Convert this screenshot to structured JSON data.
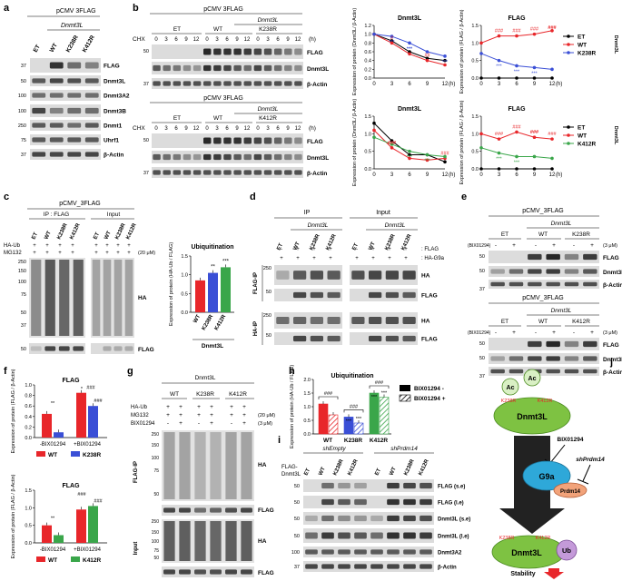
{
  "panels": {
    "a": {
      "letter": "a",
      "vector": "pCMV 3FLAG",
      "group": "Dnmt3L",
      "lanes": [
        "ET",
        "WT",
        "K238R",
        "K412R"
      ],
      "bands": [
        "FLAG",
        "Dnmt3L",
        "Dnmt3A2",
        "Dnmt3B",
        "Dnmt1",
        "Uhrf1",
        "β-Actin"
      ],
      "markers": [
        "37",
        "50",
        "100",
        "100",
        "250",
        "75",
        "37"
      ]
    },
    "b": {
      "letter": "b",
      "vector": "pCMV 3FLAG",
      "group": "Dnmt3L",
      "cond_top": [
        "ET",
        "WT",
        "K238R"
      ],
      "cond_bottom": [
        "ET",
        "WT",
        "K412R"
      ],
      "chx": "CHX",
      "times": [
        "0",
        "3",
        "6",
        "9",
        "12"
      ],
      "unit_h": "(h)",
      "bands": [
        "FLAG",
        "Dnmt3L",
        "β-Actin"
      ],
      "markers": [
        "50",
        "37"
      ]
    },
    "c": {
      "letter": "c",
      "vector": "pCMV_3FLAG",
      "ip_title": "IP : FLAG",
      "input_title": "Input",
      "lanes": [
        "ET",
        "WT",
        "K238R",
        "K412R"
      ],
      "treat": [
        "HA-Ub",
        "MG132"
      ],
      "dose": "(20 μM)",
      "bands": [
        "HA",
        "FLAG"
      ],
      "markers": [
        "250",
        "150",
        "100",
        "75",
        "50",
        "37",
        "50"
      ]
    },
    "d": {
      "letter": "d",
      "ip_title": "IP",
      "input_title": "Input",
      "group": "Dnmt3L",
      "lanes": [
        "ET",
        "WT",
        "K238R",
        "K412R"
      ],
      "rows": [
        ": FLAG",
        ": HA-G9a"
      ],
      "sections": [
        "FLAG-IP",
        "HA-IP"
      ],
      "bands": [
        "HA",
        "FLAG",
        "HA",
        "FLAG"
      ],
      "markers": [
        "250",
        "50",
        "250",
        "50"
      ]
    },
    "e": {
      "letter": "e",
      "vector": "pCMV_3FLAG",
      "group": "Dnmt3L",
      "treat": "BIX01294",
      "dose": "(3 μM)",
      "cond_top": [
        "ET",
        "WT",
        "K238R"
      ],
      "cond_bottom": [
        "ET",
        "WT",
        "K412R"
      ],
      "bands": [
        "FLAG",
        "Dnmt3L",
        "β-Actin"
      ],
      "markers": [
        "50",
        "50",
        "37"
      ]
    },
    "g": {
      "letter": "g",
      "group": "Dnmt3L",
      "cond": [
        "WT",
        "K238R",
        "K412R"
      ],
      "treat": [
        "HA-Ub",
        "MG132",
        "BIX01294"
      ],
      "dose": [
        "(20 μM)",
        "(3 μM)"
      ],
      "sections": [
        "FLAG-IP",
        "Input"
      ],
      "bands": [
        "HA",
        "FLAG",
        "HA",
        "FLAG"
      ],
      "markers": [
        "250",
        "150",
        "100",
        "75",
        "50",
        "250",
        "150",
        "100",
        "75",
        "50"
      ]
    },
    "i": {
      "letter": "i",
      "sh1": "shEmpty",
      "sh2": "shPrdm14",
      "row_label": "FLAG-Dnmt3L",
      "lanes": [
        "ET",
        "WT",
        "K238R",
        "K412R",
        "ET",
        "WT",
        "K238R",
        "K412R"
      ],
      "bands": [
        "FLAG (s.e)",
        "FLAG (l.e)",
        "Dnmt3L (s.e)",
        "Dnmt3L (l.e)",
        "Dnmt3A2",
        "β-Actin"
      ],
      "markers": [
        "50",
        "50",
        "50",
        "50",
        "100",
        "37"
      ]
    },
    "j": {
      "letter": "j",
      "protein": "Dnmt3L",
      "ac": "Ac",
      "k1": "K238R",
      "k2": "K412R",
      "bix": "BIX01294",
      "sh": "shPrdm14",
      "g9a": "G9a",
      "prdm14": "Prdm14",
      "ub": "Ub",
      "stability": "Stability"
    }
  },
  "chart_data": [
    {
      "id": "b1",
      "type": "line",
      "title": "Dnmt3L",
      "ylabel": "Expression of protein (Dnmt3L/ β-Actin)",
      "xlabel": "(h)",
      "x": [
        0,
        3,
        6,
        9,
        12
      ],
      "ylim": [
        0.0,
        1.2
      ],
      "yticks": [
        "0.0",
        "0.2",
        "0.4",
        "0.6",
        "0.8",
        "1.0",
        "1.2"
      ],
      "series": [
        {
          "name": "ET",
          "color": "#000000",
          "values": [
            1.0,
            0.85,
            0.6,
            0.45,
            0.4
          ]
        },
        {
          "name": "WT",
          "color": "#e8262a",
          "values": [
            1.0,
            0.8,
            0.55,
            0.4,
            0.3
          ]
        },
        {
          "name": "K238R",
          "color": "#3a4fd6",
          "values": [
            1.0,
            0.95,
            0.8,
            0.6,
            0.5
          ]
        }
      ],
      "annotations": [
        "***",
        "***",
        "##",
        "***",
        "#",
        "***"
      ]
    },
    {
      "id": "b2",
      "type": "line",
      "title": "FLAG",
      "ylabel": "Expression of protein (FLAG / β-Actin)",
      "xlabel": "(h)",
      "x": [
        0,
        3,
        6,
        9,
        12
      ],
      "ylim": [
        0.0,
        1.5
      ],
      "yticks": [
        "0.0",
        "0.5",
        "1.0",
        "1.5"
      ],
      "series": [
        {
          "name": "ET",
          "color": "#000000",
          "values": [
            0.0,
            0.0,
            0.0,
            0.0,
            0.0
          ]
        },
        {
          "name": "WT",
          "color": "#e8262a",
          "values": [
            1.0,
            1.2,
            1.2,
            1.25,
            1.35
          ]
        },
        {
          "name": "K238R",
          "color": "#3a4fd6",
          "values": [
            0.7,
            0.5,
            0.35,
            0.3,
            0.25
          ]
        }
      ],
      "legend": [
        "ET",
        "WT",
        "K238R"
      ],
      "side_label": "Dnmt3L",
      "annotations": [
        "###",
        "###",
        "###",
        "###",
        "***",
        "***",
        "***",
        "###"
      ]
    },
    {
      "id": "b3",
      "type": "line",
      "title": "Dnmt3L",
      "ylabel": "Expression of protein (Dnmt3L/ β-Actin)",
      "xlabel": "(h)",
      "x": [
        0,
        3,
        6,
        9,
        12
      ],
      "ylim": [
        0.0,
        1.5
      ],
      "yticks": [
        "0.0",
        "0.5",
        "1.0",
        "1.5"
      ],
      "series": [
        {
          "name": "ET",
          "color": "#000000",
          "values": [
            1.3,
            0.8,
            0.4,
            0.4,
            0.2
          ]
        },
        {
          "name": "WT",
          "color": "#e8262a",
          "values": [
            1.1,
            0.6,
            0.3,
            0.25,
            0.3
          ]
        },
        {
          "name": "K412R",
          "color": "#3aa64a",
          "values": [
            0.9,
            0.7,
            0.5,
            0.4,
            0.35
          ]
        }
      ],
      "annotations": [
        "###",
        "***",
        "***",
        "###",
        "###"
      ]
    },
    {
      "id": "b4",
      "type": "line",
      "title": "FLAG",
      "ylabel": "Expression of protein (FLAG / β-Actin)",
      "xlabel": "(h)",
      "x": [
        0,
        3,
        6,
        9,
        12
      ],
      "ylim": [
        0.0,
        1.5
      ],
      "yticks": [
        "0.0",
        "0.5",
        "1.0",
        "1.5"
      ],
      "series": [
        {
          "name": "ET",
          "color": "#000000",
          "values": [
            0.0,
            0.0,
            0.0,
            0.0,
            0.0
          ]
        },
        {
          "name": "WT",
          "color": "#e8262a",
          "values": [
            1.0,
            0.85,
            1.05,
            0.9,
            0.85
          ]
        },
        {
          "name": "K412R",
          "color": "#3aa64a",
          "values": [
            0.6,
            0.45,
            0.35,
            0.35,
            0.3
          ]
        }
      ],
      "legend": [
        "ET",
        "WT",
        "K412R"
      ],
      "side_label": "Dnmt3L",
      "annotations": [
        "###",
        "###",
        "###",
        "###",
        "***",
        "***",
        "###"
      ]
    },
    {
      "id": "c",
      "type": "bar",
      "title": "Ubiquitination",
      "ylabel": "Expression of protein (HA-Ub / FLAG)",
      "categories": [
        "WT",
        "K238R",
        "K412R"
      ],
      "group_label": "Dnmt3L",
      "values": [
        0.85,
        1.05,
        1.2
      ],
      "colors": [
        "#e8262a",
        "#3a4fd6",
        "#3aa64a"
      ],
      "ylim": [
        0.0,
        1.5
      ],
      "yticks": [
        "0.0",
        "0.5",
        "1.0",
        "1.5"
      ],
      "annotations": [
        "**",
        "***"
      ]
    },
    {
      "id": "f1",
      "type": "bar",
      "title": "FLAG",
      "ylabel": "Expression of protein (FLAG / β-Actin)",
      "categories": [
        "-BIX01294",
        "+BIX01294"
      ],
      "series": [
        {
          "name": "WT",
          "color": "#e8262a",
          "values": [
            0.45,
            0.85
          ]
        },
        {
          "name": "K238R",
          "color": "#3a4fd6",
          "values": [
            0.1,
            0.6
          ]
        }
      ],
      "ylim": [
        0.0,
        1.0
      ],
      "yticks": [
        "0.0",
        "0.2",
        "0.4",
        "0.6",
        "0.8",
        "1.0"
      ],
      "annotations": [
        "**",
        "*",
        "###",
        "###"
      ]
    },
    {
      "id": "f2",
      "type": "bar",
      "title": "FLAG",
      "ylabel": "Expression of protein (FLAG / β-Actin)",
      "categories": [
        "-BIX01294",
        "+BIX01294"
      ],
      "series": [
        {
          "name": "WT",
          "color": "#e8262a",
          "values": [
            0.5,
            0.95
          ]
        },
        {
          "name": "K412R",
          "color": "#3aa64a",
          "values": [
            0.22,
            1.05
          ]
        }
      ],
      "ylim": [
        0.0,
        1.5
      ],
      "yticks": [
        "0.0",
        "0.5",
        "1.0",
        "1.5"
      ],
      "annotations": [
        "**",
        "###",
        "###"
      ]
    },
    {
      "id": "h",
      "type": "bar",
      "title": "Ubiquitination",
      "ylabel": "Expression of protein (HA-Ub / FLAG)",
      "categories": [
        "WT",
        "K238R",
        "K412R"
      ],
      "series": [
        {
          "name": "BIX01294 -",
          "values": [
            1.1,
            0.62,
            1.5
          ]
        },
        {
          "name": "BIX01294 +",
          "values": [
            0.7,
            0.4,
            1.35
          ]
        }
      ],
      "colors": [
        "#e8262a",
        "#3a4fd6",
        "#3aa64a"
      ],
      "ylim": [
        0.0,
        2.0
      ],
      "yticks": [
        "0.0",
        "0.5",
        "1.0",
        "1.5",
        "2.0"
      ],
      "legend": [
        "BIX01294 -",
        "BIX01294 +"
      ],
      "annotations": [
        "###",
        "###",
        "***",
        "***",
        "###",
        "***",
        "***"
      ]
    }
  ]
}
